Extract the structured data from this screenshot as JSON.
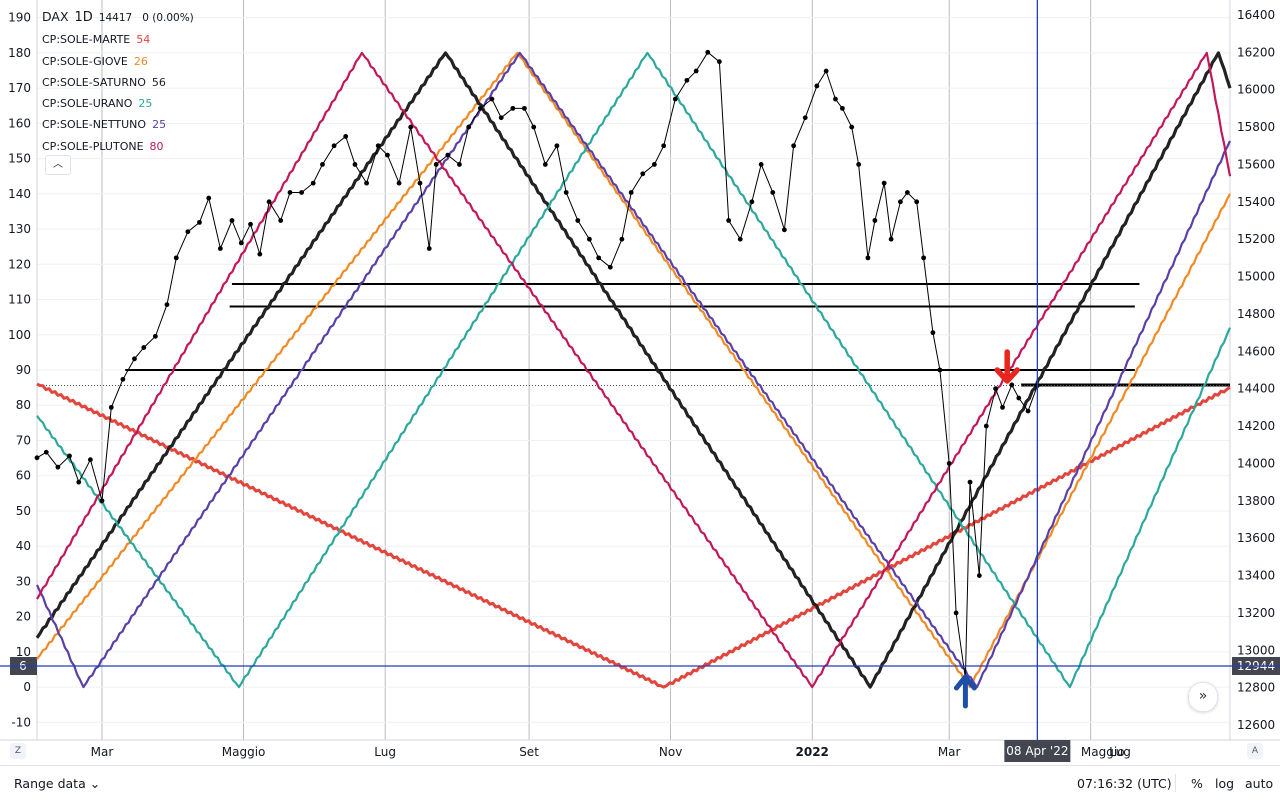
{
  "header": {
    "symbol": "DAX",
    "interval": "1D",
    "price": "14417",
    "change": "0 (0.00%)"
  },
  "legend": [
    {
      "label": "CP:SOLE-MARTE",
      "value": "54",
      "color": "#e2453c"
    },
    {
      "label": "CP:SOLE-GIOVE",
      "value": "26",
      "color": "#f08a24"
    },
    {
      "label": "CP:SOLE-SATURNO",
      "value": "56",
      "color": "#222222"
    },
    {
      "label": "CP:SOLE-URANO",
      "value": "25",
      "color": "#2da89c"
    },
    {
      "label": "CP:SOLE-NETTUNO",
      "value": "25",
      "color": "#5b3fa8"
    },
    {
      "label": "CP:SOLE-PLUTONE",
      "value": "80",
      "color": "#c2185b"
    }
  ],
  "collapse_icon": "chevron-up-icon",
  "left_axis_ticks": [
    "190",
    "180",
    "170",
    "160",
    "150",
    "140",
    "130",
    "120",
    "110",
    "100",
    "90",
    "80",
    "70",
    "60",
    "50",
    "40",
    "30",
    "20",
    "10",
    "0",
    "-10"
  ],
  "right_axis_ticks": [
    "16400",
    "16200",
    "16000",
    "15800",
    "15600",
    "15400",
    "15200",
    "15000",
    "14800",
    "14600",
    "14400",
    "14200",
    "14000",
    "13800",
    "13600",
    "13400",
    "13200",
    "13000",
    "12800",
    "12600"
  ],
  "crosshair": {
    "left_label": "6",
    "right_label": "12944",
    "date_label": "08 Apr '22"
  },
  "time_axis": [
    "Mar",
    "Maggio",
    "Lug",
    "Set",
    "Nov",
    "2022",
    "Mar",
    "Maggio",
    "Lug"
  ],
  "bottom_bar": {
    "range_label": "Range data",
    "clock": "07:16:32 (UTC)",
    "percent": "%",
    "log": "log",
    "auto": "auto"
  },
  "corner_left": "Z",
  "corner_right": "A",
  "scroll_icon": "chevrons-right-icon",
  "chart_data": {
    "type": "line",
    "left_axis": {
      "range": [
        -15,
        195
      ]
    },
    "right_axis": {
      "range": [
        12520,
        16480
      ]
    },
    "series": [
      {
        "name": "CP:SOLE-MARTE",
        "color": "#e2453c",
        "axis": "left",
        "points": [
          [
            "2021-02-01",
            86
          ],
          [
            "2021-10-29",
            0
          ],
          [
            "2022-06-30",
            85
          ]
        ]
      },
      {
        "name": "CP:SOLE-GIOVE",
        "color": "#f08a24",
        "axis": "left",
        "points": [
          [
            "2021-02-01",
            8
          ],
          [
            "2021-08-27",
            180
          ],
          [
            "2022-03-10",
            0
          ],
          [
            "2022-06-30",
            140
          ]
        ]
      },
      {
        "name": "CP:SOLE-SATURNO",
        "color": "#222222",
        "axis": "left",
        "points": [
          [
            "2021-02-01",
            14
          ],
          [
            "2021-07-27",
            180
          ],
          [
            "2022-01-26",
            0
          ],
          [
            "2022-06-25",
            180
          ],
          [
            "2022-06-30",
            170
          ]
        ]
      },
      {
        "name": "CP:SOLE-URANO",
        "color": "#2da89c",
        "axis": "left",
        "points": [
          [
            "2021-02-01",
            77
          ],
          [
            "2021-04-29",
            0
          ],
          [
            "2021-10-22",
            180
          ],
          [
            "2022-04-22",
            0
          ],
          [
            "2022-06-30",
            102
          ]
        ]
      },
      {
        "name": "CP:SOLE-NETTUNO",
        "color": "#5b3fa8",
        "axis": "left",
        "points": [
          [
            "2021-02-01",
            29
          ],
          [
            "2021-02-21",
            0
          ],
          [
            "2021-08-28",
            180
          ],
          [
            "2022-03-13",
            0
          ],
          [
            "2022-06-30",
            155
          ]
        ]
      },
      {
        "name": "CP:SOLE-PLUTONE",
        "color": "#c2185b",
        "axis": "left",
        "points": [
          [
            "2021-02-01",
            25
          ],
          [
            "2021-06-21",
            180
          ],
          [
            "2022-01-01",
            0
          ],
          [
            "2022-06-20",
            180
          ],
          [
            "2022-06-30",
            145
          ]
        ]
      }
    ],
    "dax": [
      [
        "2021-02-01",
        14030
      ],
      [
        "2021-02-05",
        14060
      ],
      [
        "2021-02-10",
        13980
      ],
      [
        "2021-02-15",
        14040
      ],
      [
        "2021-02-19",
        13900
      ],
      [
        "2021-02-24",
        14020
      ],
      [
        "2021-03-01",
        13800
      ],
      [
        "2021-03-05",
        14300
      ],
      [
        "2021-03-10",
        14450
      ],
      [
        "2021-03-15",
        14560
      ],
      [
        "2021-03-19",
        14620
      ],
      [
        "2021-03-24",
        14680
      ],
      [
        "2021-03-29",
        14850
      ],
      [
        "2021-04-02",
        15100
      ],
      [
        "2021-04-07",
        15240
      ],
      [
        "2021-04-12",
        15290
      ],
      [
        "2021-04-16",
        15420
      ],
      [
        "2021-04-21",
        15150
      ],
      [
        "2021-04-26",
        15300
      ],
      [
        "2021-04-30",
        15180
      ],
      [
        "2021-05-04",
        15280
      ],
      [
        "2021-05-08",
        15120
      ],
      [
        "2021-05-12",
        15400
      ],
      [
        "2021-05-17",
        15300
      ],
      [
        "2021-05-21",
        15450
      ],
      [
        "2021-05-26",
        15450
      ],
      [
        "2021-05-31",
        15500
      ],
      [
        "2021-06-04",
        15600
      ],
      [
        "2021-06-09",
        15700
      ],
      [
        "2021-06-14",
        15750
      ],
      [
        "2021-06-18",
        15600
      ],
      [
        "2021-06-23",
        15500
      ],
      [
        "2021-06-28",
        15700
      ],
      [
        "2021-07-02",
        15650
      ],
      [
        "2021-07-07",
        15500
      ],
      [
        "2021-07-12",
        15800
      ],
      [
        "2021-07-16",
        15500
      ],
      [
        "2021-07-20",
        15150
      ],
      [
        "2021-07-23",
        15600
      ],
      [
        "2021-07-28",
        15650
      ],
      [
        "2021-08-02",
        15600
      ],
      [
        "2021-08-06",
        15800
      ],
      [
        "2021-08-11",
        15900
      ],
      [
        "2021-08-16",
        15950
      ],
      [
        "2021-08-20",
        15850
      ],
      [
        "2021-08-25",
        15900
      ],
      [
        "2021-08-30",
        15900
      ],
      [
        "2021-09-03",
        15800
      ],
      [
        "2021-09-08",
        15600
      ],
      [
        "2021-09-13",
        15700
      ],
      [
        "2021-09-17",
        15450
      ],
      [
        "2021-09-22",
        15300
      ],
      [
        "2021-09-27",
        15200
      ],
      [
        "2021-10-01",
        15100
      ],
      [
        "2021-10-06",
        15050
      ],
      [
        "2021-10-11",
        15200
      ],
      [
        "2021-10-15",
        15450
      ],
      [
        "2021-10-20",
        15550
      ],
      [
        "2021-10-25",
        15600
      ],
      [
        "2021-10-29",
        15700
      ],
      [
        "2021-11-03",
        15950
      ],
      [
        "2021-11-08",
        16050
      ],
      [
        "2021-11-12",
        16100
      ],
      [
        "2021-11-17",
        16200
      ],
      [
        "2021-11-22",
        16150
      ],
      [
        "2021-11-26",
        15300
      ],
      [
        "2021-12-01",
        15200
      ],
      [
        "2021-12-06",
        15400
      ],
      [
        "2021-12-10",
        15600
      ],
      [
        "2021-12-15",
        15450
      ],
      [
        "2021-12-20",
        15250
      ],
      [
        "2021-12-24",
        15700
      ],
      [
        "2021-12-29",
        15850
      ],
      [
        "2022-01-03",
        16020
      ],
      [
        "2022-01-07",
        16100
      ],
      [
        "2022-01-11",
        15950
      ],
      [
        "2022-01-14",
        15900
      ],
      [
        "2022-01-18",
        15800
      ],
      [
        "2022-01-21",
        15600
      ],
      [
        "2022-01-25",
        15100
      ],
      [
        "2022-01-28",
        15300
      ],
      [
        "2022-02-01",
        15500
      ],
      [
        "2022-02-04",
        15200
      ],
      [
        "2022-02-08",
        15400
      ],
      [
        "2022-02-11",
        15450
      ],
      [
        "2022-02-15",
        15400
      ],
      [
        "2022-02-18",
        15100
      ],
      [
        "2022-02-22",
        14700
      ],
      [
        "2022-02-25",
        14500
      ],
      [
        "2022-03-01",
        14000
      ],
      [
        "2022-03-04",
        13200
      ],
      [
        "2022-03-08",
        12850
      ],
      [
        "2022-03-10",
        13900
      ],
      [
        "2022-03-14",
        13400
      ],
      [
        "2022-03-17",
        14200
      ],
      [
        "2022-03-21",
        14400
      ],
      [
        "2022-03-24",
        14300
      ],
      [
        "2022-03-28",
        14420
      ],
      [
        "2022-03-31",
        14350
      ],
      [
        "2022-04-04",
        14280
      ],
      [
        "2022-04-08",
        14417
      ]
    ],
    "horizontal_lines": [
      {
        "value": 14960,
        "from": "2021-04-26",
        "to": "2022-05-22"
      },
      {
        "value": 14840,
        "from": "2021-04-25",
        "to": "2022-05-20"
      },
      {
        "value": 14500,
        "from": "2021-03-11",
        "to": "2022-05-20"
      },
      {
        "value": 14420,
        "from": "2022-04-01",
        "to": "2022-06-30"
      }
    ],
    "markers": [
      {
        "type": "arrow-up",
        "date": "2022-03-08",
        "color": "#1e4fa8"
      },
      {
        "type": "arrow-down",
        "date": "2022-03-26",
        "color": "#e8261e"
      }
    ],
    "crosshair": {
      "date": "2022-04-08",
      "left_value": 6,
      "right_value": 12944
    },
    "grid": true
  }
}
